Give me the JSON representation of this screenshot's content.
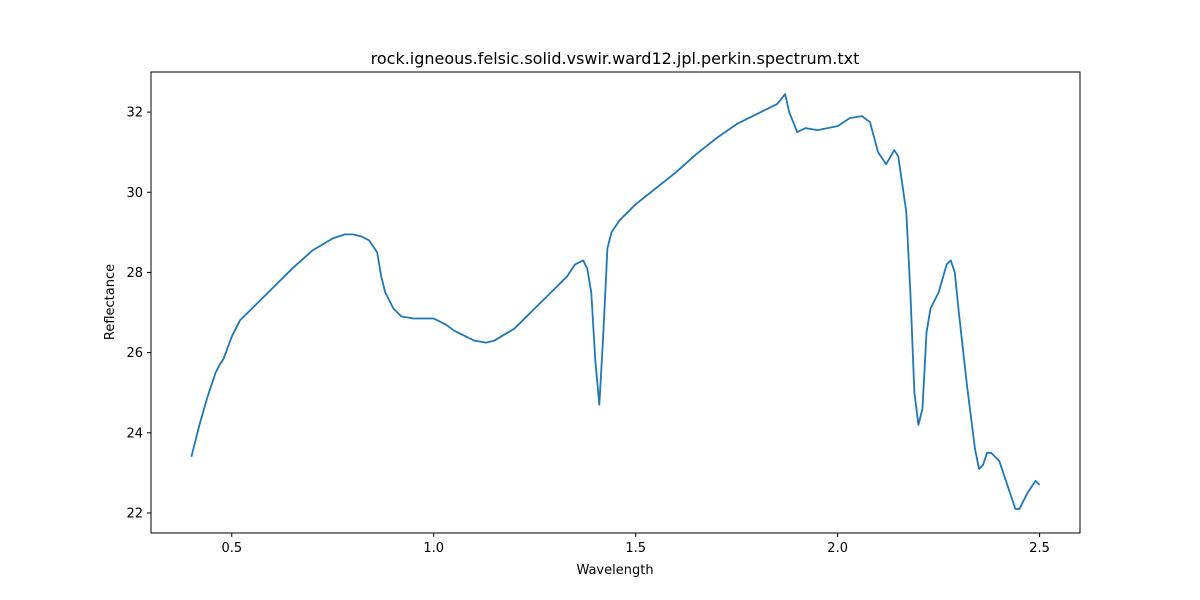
{
  "chart_data": {
    "type": "line",
    "title": "rock.igneous.felsic.solid.vswir.ward12.jpl.perkin.spectrum.txt",
    "xlabel": "Wavelength",
    "ylabel": "Reflectance",
    "xlim": [
      0.3,
      2.6
    ],
    "ylim": [
      21.5,
      33.0
    ],
    "xticks": [
      0.5,
      1.0,
      1.5,
      2.0,
      2.5
    ],
    "xtick_labels": [
      "0.5",
      "1.0",
      "1.5",
      "2.0",
      "2.5"
    ],
    "yticks": [
      22,
      24,
      26,
      28,
      30,
      32
    ],
    "ytick_labels": [
      "22",
      "24",
      "26",
      "28",
      "30",
      "32"
    ],
    "grid": false,
    "legend": "none",
    "series": [
      {
        "color": "#1f77b4",
        "x": [
          0.4,
          0.42,
          0.44,
          0.46,
          0.47,
          0.48,
          0.5,
          0.52,
          0.55,
          0.6,
          0.65,
          0.7,
          0.75,
          0.78,
          0.8,
          0.82,
          0.84,
          0.86,
          0.87,
          0.88,
          0.9,
          0.92,
          0.95,
          1.0,
          1.03,
          1.05,
          1.08,
          1.1,
          1.13,
          1.15,
          1.2,
          1.25,
          1.3,
          1.33,
          1.35,
          1.37,
          1.38,
          1.39,
          1.4,
          1.41,
          1.42,
          1.43,
          1.44,
          1.46,
          1.5,
          1.55,
          1.6,
          1.65,
          1.7,
          1.75,
          1.8,
          1.85,
          1.87,
          1.88,
          1.9,
          1.92,
          1.95,
          2.0,
          2.03,
          2.06,
          2.08,
          2.1,
          2.12,
          2.14,
          2.15,
          2.17,
          2.18,
          2.19,
          2.2,
          2.21,
          2.22,
          2.23,
          2.25,
          2.27,
          2.28,
          2.29,
          2.3,
          2.32,
          2.34,
          2.35,
          2.36,
          2.37,
          2.38,
          2.4,
          2.42,
          2.44,
          2.45,
          2.47,
          2.49,
          2.5
        ],
        "y": [
          23.4,
          24.2,
          24.9,
          25.5,
          25.7,
          25.85,
          26.4,
          26.8,
          27.1,
          27.6,
          28.1,
          28.55,
          28.85,
          28.95,
          28.95,
          28.9,
          28.8,
          28.5,
          27.9,
          27.5,
          27.1,
          26.9,
          26.85,
          26.85,
          26.7,
          26.55,
          26.4,
          26.3,
          26.25,
          26.3,
          26.6,
          27.1,
          27.6,
          27.9,
          28.2,
          28.3,
          28.1,
          27.5,
          25.8,
          24.7,
          26.5,
          28.6,
          29.0,
          29.3,
          29.7,
          30.1,
          30.5,
          30.95,
          31.35,
          31.7,
          31.95,
          32.2,
          32.45,
          32.0,
          31.5,
          31.6,
          31.55,
          31.65,
          31.85,
          31.9,
          31.75,
          31.0,
          30.7,
          31.05,
          30.9,
          29.5,
          27.5,
          25.0,
          24.2,
          24.6,
          26.5,
          27.1,
          27.5,
          28.2,
          28.3,
          28.0,
          27.0,
          25.2,
          23.6,
          23.1,
          23.2,
          23.5,
          23.5,
          23.3,
          22.7,
          22.1,
          22.1,
          22.5,
          22.8,
          22.7
        ]
      }
    ]
  }
}
